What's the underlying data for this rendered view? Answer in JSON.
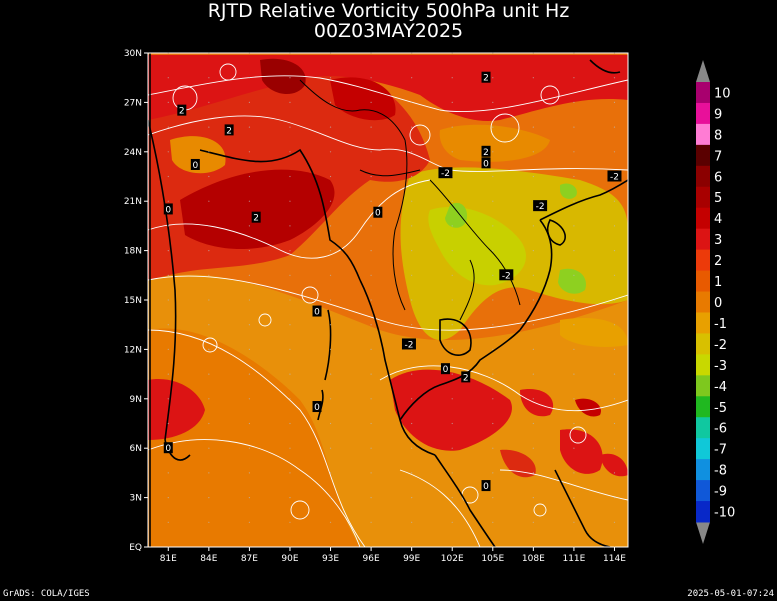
{
  "title": "RJTD Relative Vorticity 500hPa unit Hz",
  "subtitle": "00Z03MAY2025",
  "lat_labels": [
    "30N",
    "27N",
    "24N",
    "21N",
    "18N",
    "15N",
    "12N",
    "9N",
    "6N",
    "3N",
    "EQ"
  ],
  "lon_labels": [
    "81E",
    "84E",
    "87E",
    "90E",
    "93E",
    "96E",
    "99E",
    "102E",
    "105E",
    "108E",
    "111E",
    "114E"
  ],
  "colorbar": {
    "labels": [
      "10",
      "9",
      "8",
      "7",
      "6",
      "5",
      "4",
      "3",
      "2",
      "1",
      "0",
      "-1",
      "-2",
      "-3",
      "-4",
      "-5",
      "-6",
      "-7",
      "-8",
      "-9",
      "-10"
    ],
    "colors": [
      "#a8006e",
      "#e8109a",
      "#ff7cd4",
      "#5a0000",
      "#8b0000",
      "#a80000",
      "#c40000",
      "#dc1414",
      "#ec3a0a",
      "#e85a00",
      "#e87a00",
      "#e8a000",
      "#d8c000",
      "#c8d800",
      "#7ec81e",
      "#20b820",
      "#10c8a0",
      "#10c8d8",
      "#1090e0",
      "#1058d8",
      "#0828c8"
    ]
  },
  "contour_labels": [
    {
      "text": "2",
      "lon": 82.0,
      "lat": 26.5
    },
    {
      "text": "2",
      "lon": 85.5,
      "lat": 25.3
    },
    {
      "text": "0",
      "lon": 83.0,
      "lat": 23.2
    },
    {
      "text": "0",
      "lon": 81.0,
      "lat": 20.5
    },
    {
      "text": "2",
      "lon": 87.5,
      "lat": 20.0
    },
    {
      "text": "0",
      "lon": 96.5,
      "lat": 20.3
    },
    {
      "text": "2",
      "lon": 104.5,
      "lat": 28.5
    },
    {
      "text": "2",
      "lon": 104.5,
      "lat": 24.0
    },
    {
      "text": "0",
      "lon": 104.5,
      "lat": 23.3
    },
    {
      "text": "-2",
      "lon": 101.5,
      "lat": 22.7
    },
    {
      "text": "-2",
      "lon": 108.5,
      "lat": 20.7
    },
    {
      "text": "-2",
      "lon": 114.0,
      "lat": 22.5
    },
    {
      "text": "-2",
      "lon": 106.0,
      "lat": 16.5
    },
    {
      "text": "0",
      "lon": 92.0,
      "lat": 14.3
    },
    {
      "text": "-2",
      "lon": 98.8,
      "lat": 12.3
    },
    {
      "text": "0",
      "lon": 101.5,
      "lat": 10.8
    },
    {
      "text": "2",
      "lon": 103.0,
      "lat": 10.3
    },
    {
      "text": "0",
      "lon": 92.0,
      "lat": 8.5
    },
    {
      "text": "0",
      "lon": 81.0,
      "lat": 6.0
    },
    {
      "text": "0",
      "lon": 104.5,
      "lat": 3.7
    }
  ],
  "footer_left": "GrADS: COLA/IGES",
  "footer_right": "2025-05-01-07:24"
}
